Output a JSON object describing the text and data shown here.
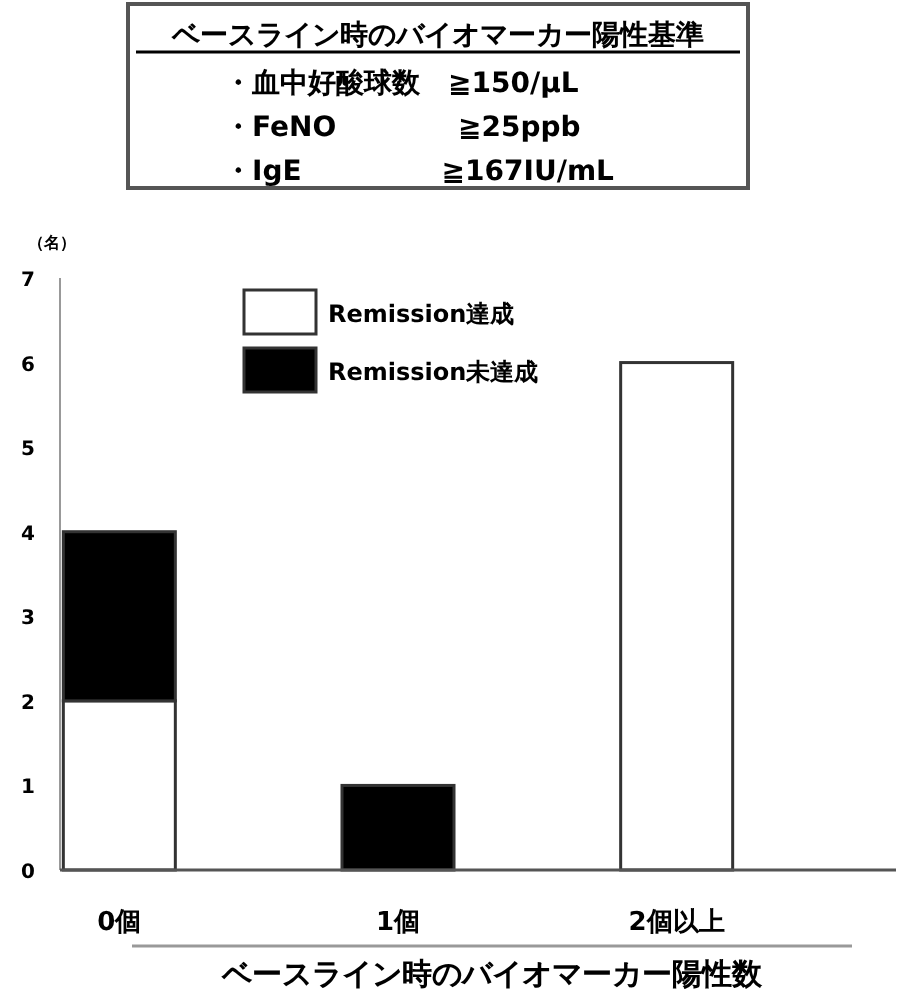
{
  "chart_data": {
    "type": "bar",
    "stacked": true,
    "title": "ベースライン時のバイオマーカー陽性基準",
    "annotations": [
      "・血中好酸球数　≧150/μL",
      "・FeNO　　　　 ≧25ppb",
      "・IgE　　　　　≧167IU/mL"
    ],
    "ylabel": "（名）",
    "xlabel": "ベースライン時のバイオマーカー陽性数",
    "categories": [
      "0個",
      "1個",
      "2個以上"
    ],
    "series": [
      {
        "name": "Remission達成",
        "color": "#ffffff",
        "values": [
          2,
          0,
          6
        ]
      },
      {
        "name": "Remission未達成",
        "color": "#000000",
        "values": [
          2,
          1,
          0
        ]
      }
    ],
    "ylim": [
      0,
      7
    ],
    "yticks": [
      0,
      1,
      2,
      3,
      4,
      5,
      6,
      7
    ],
    "grid": false,
    "legend": "top left"
  }
}
